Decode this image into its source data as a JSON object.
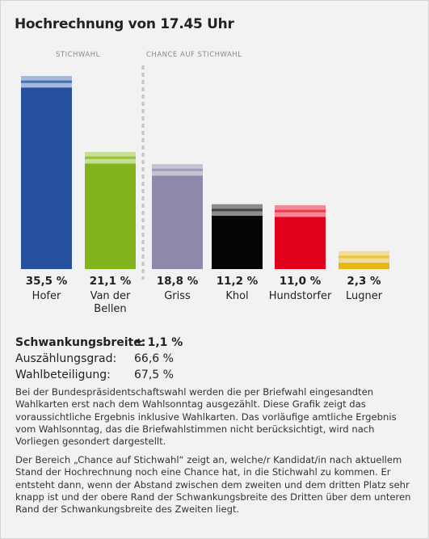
{
  "header": {
    "title": "Hochrechnung von 17.45 Uhr"
  },
  "sections": {
    "runoff": "STICHWAHL",
    "chance": "CHANCE AUF STICHWAHL"
  },
  "chart_data": {
    "type": "bar",
    "title": "Hochrechnung von 17.45 Uhr",
    "ylim": [
      0,
      36.6
    ],
    "margin": 1.1,
    "categories": [
      "Hofer",
      "Van der Bellen",
      "Griss",
      "Khol",
      "Hundstorfer",
      "Lugner"
    ],
    "name_lines": [
      [
        "Hofer"
      ],
      [
        "Van der",
        "Bellen"
      ],
      [
        "Griss"
      ],
      [
        "Khol"
      ],
      [
        "Hundstorfer"
      ],
      [
        "Lugner"
      ]
    ],
    "values": [
      35.5,
      21.1,
      18.8,
      11.2,
      11.0,
      2.3
    ],
    "labels": [
      "35,5 %",
      "21,1 %",
      "18,8 %",
      "11,2 %",
      "11,0 %",
      "2,3 %"
    ],
    "colors": [
      "#2550a0",
      "#80b41a",
      "#8e88aa",
      "#050505",
      "#e2001a",
      "#e4b616"
    ],
    "band_colors": [
      "#a8b8d8",
      "#c6df94",
      "#c6c3d3",
      "#8c8c8c",
      "#f28894",
      "#f1db95"
    ],
    "band_line_colors": [
      "#4a6db4",
      "#93c13b",
      "#a19cb8",
      "#444444",
      "#ea3d51",
      "#e9c444"
    ],
    "runoff_count": 2
  },
  "stats": [
    {
      "label": "Schwankungsbreite:",
      "value": "± 1,1 %"
    },
    {
      "label": "Auszählungsgrad:",
      "value": "66,6 %"
    },
    {
      "label": "Wahlbeteiligung:",
      "value": "67,5 %"
    }
  ],
  "notes": [
    "Bei der Bundespräsidentschaftswahl werden die per Briefwahl eingesandten Wahlkarten erst nach dem Wahlsonntag ausgezählt. Diese Grafik zeigt das voraussichtliche Ergebnis inklusive Wahlkarten. Das vorläufige amtliche Ergebnis vom Wahlsonntag, das die Briefwahlstimmen nicht berücksichtigt, wird nach Vorliegen gesondert dargestellt.",
    "Der Bereich „Chance auf Stichwahl“ zeigt an, welche/r Kandidat/in nach aktuellem Stand der Hochrechnung noch eine Chance hat, in die Stichwahl zu kommen. Er entsteht dann, wenn der Abstand zwischen dem zweiten und dem dritten Platz sehr knapp ist und der obere Rand der Schwankungsbreite des Dritten über dem unteren Rand der Schwankungsbreite des Zweiten liegt."
  ]
}
